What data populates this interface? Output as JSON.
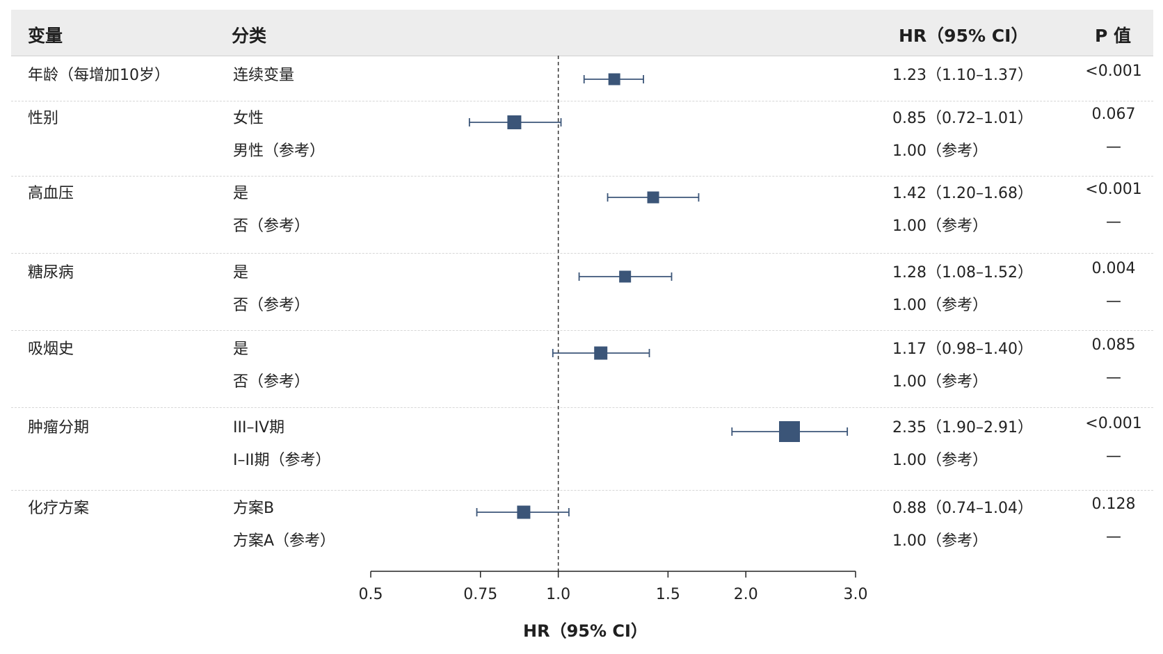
{
  "header": {
    "variable": "变量",
    "category": "分类",
    "hr": "HR（95% CI）",
    "p": "P 值"
  },
  "rows": [
    {
      "variable": "年龄（每增加10岁）",
      "category": "连续变量",
      "hr_text": "1.23（1.10–1.37）",
      "p": "<0.001"
    },
    {
      "variable": "性别",
      "category": "女性",
      "hr_text": "0.85（0.72–1.01）",
      "p": "0.067"
    },
    {
      "variable": "",
      "category": "男性（参考）",
      "hr_text": "1.00（参考）",
      "p": "—"
    },
    {
      "variable": "高血压",
      "category": "是",
      "hr_text": "1.42（1.20–1.68）",
      "p": "<0.001"
    },
    {
      "variable": "",
      "category": "否（参考）",
      "hr_text": "1.00（参考）",
      "p": "—"
    },
    {
      "variable": "糖尿病",
      "category": "是",
      "hr_text": "1.28（1.08–1.52）",
      "p": "0.004"
    },
    {
      "variable": "",
      "category": "否（参考）",
      "hr_text": "1.00（参考）",
      "p": "—"
    },
    {
      "variable": "吸烟史",
      "category": "是",
      "hr_text": "1.17（0.98–1.40）",
      "p": "0.085"
    },
    {
      "variable": "",
      "category": "否（参考）",
      "hr_text": "1.00（参考）",
      "p": "—"
    },
    {
      "variable": "肿瘤分期",
      "category": "III–IV期",
      "hr_text": "2.35（1.90–2.91）",
      "p": "<0.001"
    },
    {
      "variable": "",
      "category": "I–II期（参考）",
      "hr_text": "1.00（参考）",
      "p": "—"
    },
    {
      "variable": "化疗方案",
      "category": "方案B",
      "hr_text": "0.88（0.74–1.04）",
      "p": "0.128"
    },
    {
      "variable": "",
      "category": "方案A（参考）",
      "hr_text": "1.00（参考）",
      "p": "—"
    }
  ],
  "chart_data": {
    "type": "forest",
    "x_scale": "log",
    "xlabel": "HR（95% CI）",
    "xlim": [
      0.5,
      3.0
    ],
    "x_ticks": [
      0.5,
      0.75,
      1.0,
      1.5,
      2.0,
      3.0
    ],
    "x_tick_labels": [
      "0.5",
      "0.75",
      "1.0",
      "1.5",
      "2.0",
      "3.0"
    ],
    "reference_line": 1.0,
    "marker_color": "#3b5578",
    "series": [
      {
        "hr": 1.23,
        "lower": 1.1,
        "upper": 1.37
      },
      {
        "hr": 0.85,
        "lower": 0.72,
        "upper": 1.01
      },
      {
        "hr": 1.42,
        "lower": 1.2,
        "upper": 1.68
      },
      {
        "hr": 1.28,
        "lower": 1.08,
        "upper": 1.52
      },
      {
        "hr": 1.17,
        "lower": 0.98,
        "upper": 1.4
      },
      {
        "hr": 2.35,
        "lower": 1.9,
        "upper": 2.91
      },
      {
        "hr": 0.88,
        "lower": 0.74,
        "upper": 1.04
      }
    ]
  }
}
